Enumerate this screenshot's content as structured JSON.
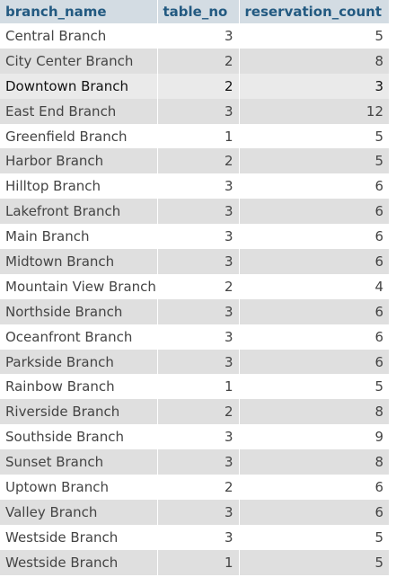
{
  "table": {
    "columns": [
      "branch_name",
      "table_no",
      "reservation_count"
    ],
    "rows": [
      {
        "branch_name": "Central Branch",
        "table_no": "3",
        "reservation_count": "5"
      },
      {
        "branch_name": "City Center Branch",
        "table_no": "2",
        "reservation_count": "8"
      },
      {
        "branch_name": "Downtown Branch",
        "table_no": "2",
        "reservation_count": "3"
      },
      {
        "branch_name": "East End Branch",
        "table_no": "3",
        "reservation_count": "12"
      },
      {
        "branch_name": "Greenfield Branch",
        "table_no": "1",
        "reservation_count": "5"
      },
      {
        "branch_name": "Harbor Branch",
        "table_no": "2",
        "reservation_count": "5"
      },
      {
        "branch_name": "Hilltop Branch",
        "table_no": "3",
        "reservation_count": "6"
      },
      {
        "branch_name": "Lakefront Branch",
        "table_no": "3",
        "reservation_count": "6"
      },
      {
        "branch_name": "Main Branch",
        "table_no": "3",
        "reservation_count": "6"
      },
      {
        "branch_name": "Midtown Branch",
        "table_no": "3",
        "reservation_count": "6"
      },
      {
        "branch_name": "Mountain View Branch",
        "table_no": "2",
        "reservation_count": "4"
      },
      {
        "branch_name": "Northside Branch",
        "table_no": "3",
        "reservation_count": "6"
      },
      {
        "branch_name": "Oceanfront Branch",
        "table_no": "3",
        "reservation_count": "6"
      },
      {
        "branch_name": "Parkside Branch",
        "table_no": "3",
        "reservation_count": "6"
      },
      {
        "branch_name": "Rainbow Branch",
        "table_no": "1",
        "reservation_count": "5"
      },
      {
        "branch_name": "Riverside Branch",
        "table_no": "2",
        "reservation_count": "8"
      },
      {
        "branch_name": "Southside Branch",
        "table_no": "3",
        "reservation_count": "9"
      },
      {
        "branch_name": "Sunset Branch",
        "table_no": "3",
        "reservation_count": "8"
      },
      {
        "branch_name": "Uptown Branch",
        "table_no": "2",
        "reservation_count": "6"
      },
      {
        "branch_name": "Valley Branch",
        "table_no": "3",
        "reservation_count": "6"
      },
      {
        "branch_name": "Westside Branch",
        "table_no": "3",
        "reservation_count": "5"
      },
      {
        "branch_name": "Westside Branch",
        "table_no": "1",
        "reservation_count": "5"
      }
    ],
    "hovered_row": 2
  },
  "colors": {
    "header_bg": "#d3dce3",
    "header_text": "#235a81",
    "row_alt_bg": "#dfdfdf",
    "row_hover_bg": "#eaeaea"
  }
}
